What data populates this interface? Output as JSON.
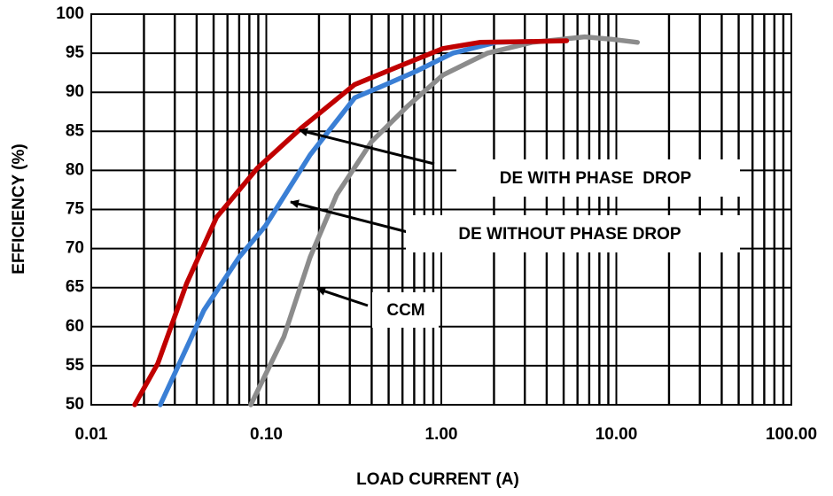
{
  "chart_data": {
    "type": "line",
    "x_label": "LOAD CURRENT (A)",
    "y_label": "EFFICIENCY (%)",
    "log_x": true,
    "grid": true,
    "minor_grid": true,
    "xlim": [
      0.01,
      100
    ],
    "ylim": [
      50,
      100
    ],
    "xticks": [
      0.01,
      {
        "value": 0.1,
        "label": "0.10"
      },
      {
        "value": 1,
        "label": "1.00"
      },
      {
        "value": 10,
        "label": "10.00"
      },
      {
        "value": 100,
        "label": "100.00"
      }
    ],
    "yticks": [
      50,
      55,
      60,
      65,
      70,
      75,
      80,
      85,
      90,
      95,
      100
    ],
    "series": [
      {
        "name": "DE WITH PHASE  DROP",
        "color": "#c00000",
        "x": [
          0.0177,
          0.024,
          0.035,
          0.052,
          0.089,
          0.158,
          0.32,
          0.57,
          1.02,
          1.66,
          3.3,
          5.2
        ],
        "values": [
          50,
          55.3,
          65.5,
          74,
          80.3,
          85.4,
          91,
          93.3,
          95.6,
          96.4,
          96.5,
          96.6
        ]
      },
      {
        "name": "DE WITHOUT PHASE DROP",
        "color": "#3a7fd5",
        "x": [
          0.0248,
          0.044,
          0.07,
          0.099,
          0.178,
          0.32,
          0.45,
          0.72,
          1.16,
          2.05,
          3.3
        ],
        "values": [
          50,
          62.1,
          68.9,
          72.9,
          82,
          89.3,
          90.7,
          92.7,
          95,
          96.4,
          96.5
        ]
      },
      {
        "name": "CCM",
        "color": "#8c8c8c",
        "x": [
          0.0815,
          0.126,
          0.178,
          0.253,
          0.4,
          0.64,
          1.02,
          1.83,
          3.3,
          6.6,
          9.3,
          13.2
        ],
        "values": [
          50,
          58.7,
          68.9,
          76.9,
          83.7,
          88.2,
          92.2,
          95,
          96.4,
          97.1,
          96.8,
          96.4
        ]
      }
    ]
  }
}
